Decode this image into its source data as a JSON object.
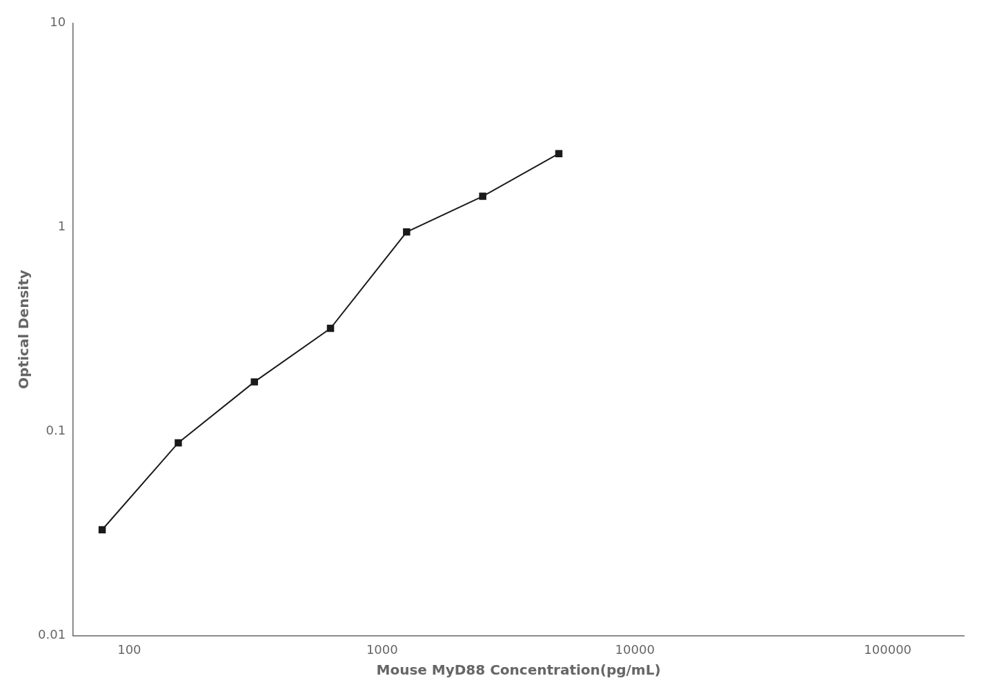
{
  "chart_data": {
    "type": "line",
    "x": [
      78.125,
      156.25,
      312.5,
      625,
      1250,
      2500,
      5000
    ],
    "values": [
      0.033,
      0.088,
      0.175,
      0.32,
      0.95,
      1.42,
      2.3
    ],
    "color": "#1a1a1a",
    "marker": "square",
    "xlabel": "Mouse MyD88 Concentration(pg/mL)",
    "ylabel": "Optical Density",
    "log": true,
    "xlim": [
      60,
      200000
    ],
    "ylim": [
      0.01,
      10
    ],
    "xticks": [
      100,
      1000,
      10000,
      100000
    ],
    "yticks": [
      0.01,
      0.1,
      1,
      10
    ],
    "grid": false
  }
}
